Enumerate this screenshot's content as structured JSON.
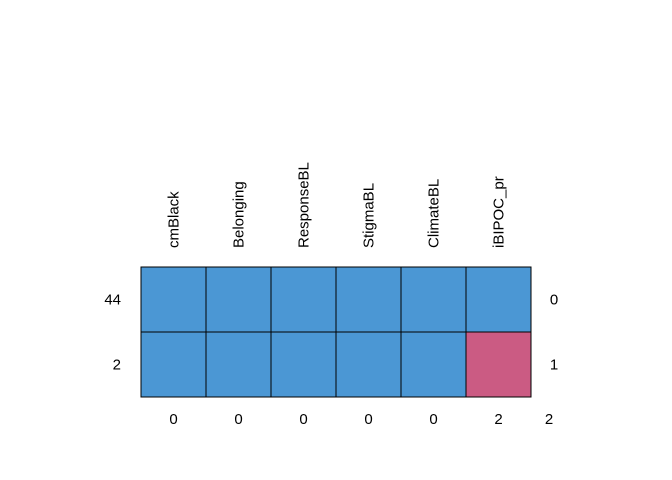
{
  "chart_data": {
    "type": "heatmap",
    "title": "",
    "xlabel": "",
    "ylabel": "",
    "columns": [
      "cmBlack",
      "Belonging",
      "ResponseBL",
      "StigmaBL",
      "ClimateBL",
      "iBIPOC_pr"
    ],
    "rows": [
      {
        "count": "44",
        "missing_vars": "0",
        "cells": [
          1,
          1,
          1,
          1,
          1,
          1
        ]
      },
      {
        "count": "2",
        "missing_vars": "1",
        "cells": [
          1,
          1,
          1,
          1,
          1,
          0
        ]
      }
    ],
    "column_missing_totals": [
      "0",
      "0",
      "0",
      "0",
      "0",
      "2"
    ],
    "total_missing": "2",
    "colors": {
      "observed": "#4b97d4",
      "missing": "#cb5b83",
      "border": "#000000"
    }
  }
}
